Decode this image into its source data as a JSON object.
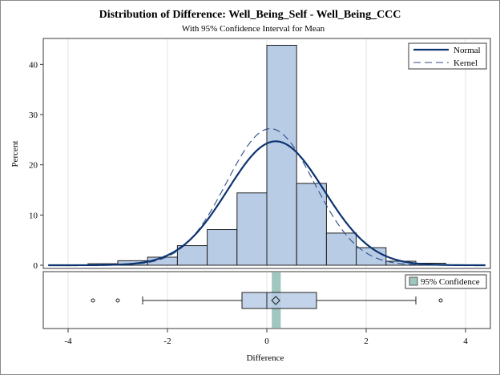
{
  "chart_data": {
    "type": "histogram",
    "title": "Distribution of Difference: Well_Being_Self - Well_Being_CCC",
    "subtitle": "With 95% Confidence Interval for Mean",
    "xlabel": "Difference",
    "ylabel": "Percent",
    "xlim": [
      -4.5,
      4.5
    ],
    "ylim": [
      0,
      45
    ],
    "xticks": [
      -4,
      -2,
      0,
      2,
      4
    ],
    "yticks": [
      0,
      10,
      20,
      30,
      40
    ],
    "grid": true,
    "bins": [
      {
        "lo": -3.6,
        "hi": -3.0,
        "percent": 0.3
      },
      {
        "lo": -3.0,
        "hi": -2.4,
        "percent": 0.9
      },
      {
        "lo": -2.4,
        "hi": -1.8,
        "percent": 1.6
      },
      {
        "lo": -1.8,
        "hi": -1.2,
        "percent": 3.9
      },
      {
        "lo": -1.2,
        "hi": -0.6,
        "percent": 7.1
      },
      {
        "lo": -0.6,
        "hi": 0.0,
        "percent": 14.4
      },
      {
        "lo": 0.0,
        "hi": 0.6,
        "percent": 43.8
      },
      {
        "lo": 0.6,
        "hi": 1.2,
        "percent": 16.3
      },
      {
        "lo": 1.2,
        "hi": 1.8,
        "percent": 6.4
      },
      {
        "lo": 1.8,
        "hi": 2.4,
        "percent": 3.5
      },
      {
        "lo": 2.4,
        "hi": 3.0,
        "percent": 0.8
      },
      {
        "lo": 3.0,
        "hi": 3.6,
        "percent": 0.4
      }
    ],
    "normal": {
      "mean": 0.18,
      "sd": 0.97
    },
    "kernel": {
      "center": 0.07,
      "sd": 0.88
    },
    "legend": {
      "placement": "top-right",
      "entries": [
        "Normal",
        "Kernel"
      ]
    },
    "boxplot": {
      "whisker_low": -2.5,
      "q1": -0.5,
      "median": 0.0,
      "mean": 0.18,
      "q3": 1.0,
      "whisker_high": 3.0,
      "outliers": [
        -3.5,
        -3.0,
        3.5
      ],
      "ci": [
        0.1,
        0.28
      ],
      "legend": "95% Confidence"
    },
    "colors": {
      "bar_fill": "#b8cce6",
      "bar_stroke": "#1f1f1f",
      "normal_line": "#0d3371",
      "kernel_line": "#2c4e83",
      "ci_band": "#9fc6bf",
      "grid": "#e3e3e3"
    }
  }
}
